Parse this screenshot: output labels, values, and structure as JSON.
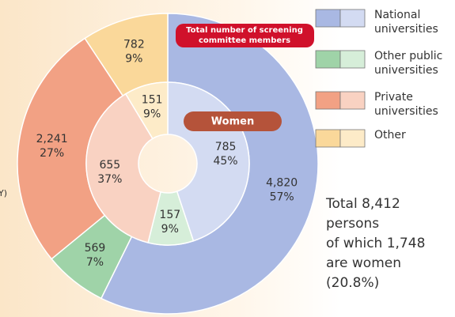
{
  "chart_data": {
    "type": "nested_donut",
    "title": "Total number of screening committee members",
    "inner_title": "Women",
    "series": [
      {
        "name": "National universities",
        "color": "#a9b8e3",
        "inner_color": "#d3dbf2",
        "values": [
          4820,
          785
        ],
        "value_labels": [
          "4,820",
          "785"
        ],
        "shares": [
          57,
          45
        ],
        "share_labels": [
          "57%",
          "45%"
        ]
      },
      {
        "name": "Other public universities",
        "color": "#9fd3a8",
        "inner_color": "#d6eed9",
        "values": [
          569,
          157
        ],
        "value_labels": [
          "569",
          "157"
        ],
        "shares": [
          7,
          9
        ],
        "share_labels": [
          "7%",
          "9%"
        ]
      },
      {
        "name": "Private universities",
        "color": "#f2a184",
        "inner_color": "#f9d2c2",
        "values": [
          2241,
          655
        ],
        "value_labels": [
          "2,241",
          "655"
        ],
        "shares": [
          27,
          37
        ],
        "share_labels": [
          "27%",
          "37%"
        ]
      },
      {
        "name": "Other",
        "color": "#fad89a",
        "inner_color": "#fdebc8",
        "values": [
          782,
          151
        ],
        "value_labels": [
          "782",
          "151"
        ],
        "shares": [
          9,
          9
        ],
        "share_labels": [
          "9%",
          "9%"
        ]
      }
    ],
    "annotation": [
      "Total 8,412",
      "persons",
      "of which 1,748",
      "are women",
      "(20.8%)"
    ],
    "edge_text": "Y)"
  }
}
